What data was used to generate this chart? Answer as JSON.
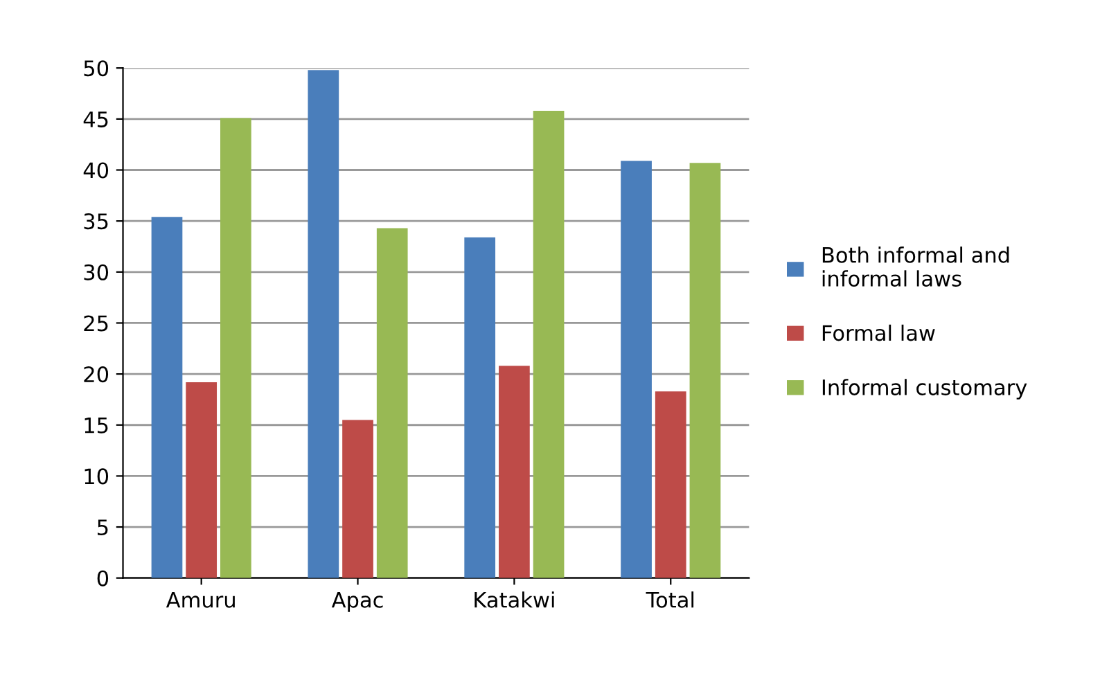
{
  "chart_data": {
    "type": "bar",
    "categories": [
      "Amuru",
      "Apac",
      "Katakwi",
      "Total"
    ],
    "series": [
      {
        "name": "Both informal and\ninformal laws",
        "color": "#4a7ebb",
        "values": [
          35.4,
          49.8,
          33.4,
          40.9
        ]
      },
      {
        "name": "Formal law",
        "color": "#be4b48",
        "values": [
          19.2,
          15.5,
          20.8,
          18.3
        ]
      },
      {
        "name": "Informal customary",
        "color": "#98b954",
        "values": [
          45.1,
          34.3,
          45.8,
          40.7
        ]
      }
    ],
    "ylim": [
      0,
      50
    ],
    "yticks": [
      0,
      5,
      10,
      15,
      20,
      25,
      30,
      35,
      40,
      45,
      50
    ],
    "grid": "y",
    "legend": "right"
  }
}
